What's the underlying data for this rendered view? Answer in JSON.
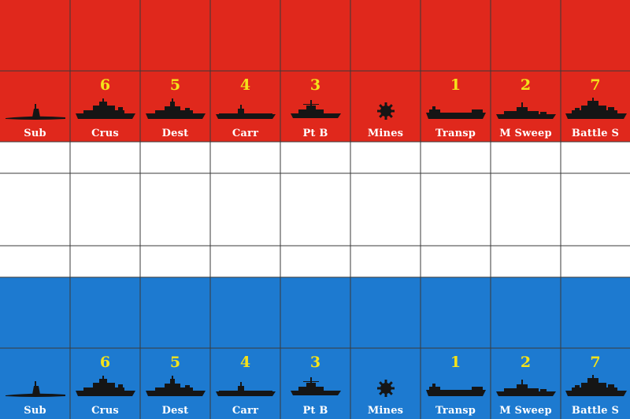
{
  "colors": {
    "red": "#e0281c",
    "white": "#ffffff",
    "blue": "#1d7ad0",
    "line": "#3a3a3a",
    "number": "#f4e21a",
    "label": "#ffffff",
    "silhouette": "#151515"
  },
  "columns": 9,
  "red_side": {
    "pieces": [
      {
        "number": "",
        "label": "Sub",
        "icon": "submarine-icon"
      },
      {
        "number": "6",
        "label": "Crus",
        "icon": "cruiser-icon"
      },
      {
        "number": "5",
        "label": "Dest",
        "icon": "destroyer-icon"
      },
      {
        "number": "4",
        "label": "Carr",
        "icon": "carrier-icon"
      },
      {
        "number": "3",
        "label": "Pt B",
        "icon": "patrol-boat-icon"
      },
      {
        "number": "",
        "label": "Mines",
        "icon": "mine-icon"
      },
      {
        "number": "1",
        "label": "Transp",
        "icon": "transport-icon"
      },
      {
        "number": "2",
        "label": "M Sweep",
        "icon": "minesweeper-icon"
      },
      {
        "number": "7",
        "label": "Battle S",
        "icon": "battleship-icon"
      }
    ]
  },
  "blue_side": {
    "pieces": [
      {
        "number": "",
        "label": "Sub",
        "icon": "submarine-icon"
      },
      {
        "number": "6",
        "label": "Crus",
        "icon": "cruiser-icon"
      },
      {
        "number": "5",
        "label": "Dest",
        "icon": "destroyer-icon"
      },
      {
        "number": "4",
        "label": "Carr",
        "icon": "carrier-icon"
      },
      {
        "number": "3",
        "label": "Pt B",
        "icon": "patrol-boat-icon"
      },
      {
        "number": "",
        "label": "Mines",
        "icon": "mine-icon"
      },
      {
        "number": "1",
        "label": "Transp",
        "icon": "transport-icon"
      },
      {
        "number": "2",
        "label": "M Sweep",
        "icon": "minesweeper-icon"
      },
      {
        "number": "7",
        "label": "Battle S",
        "icon": "battleship-icon"
      }
    ]
  }
}
